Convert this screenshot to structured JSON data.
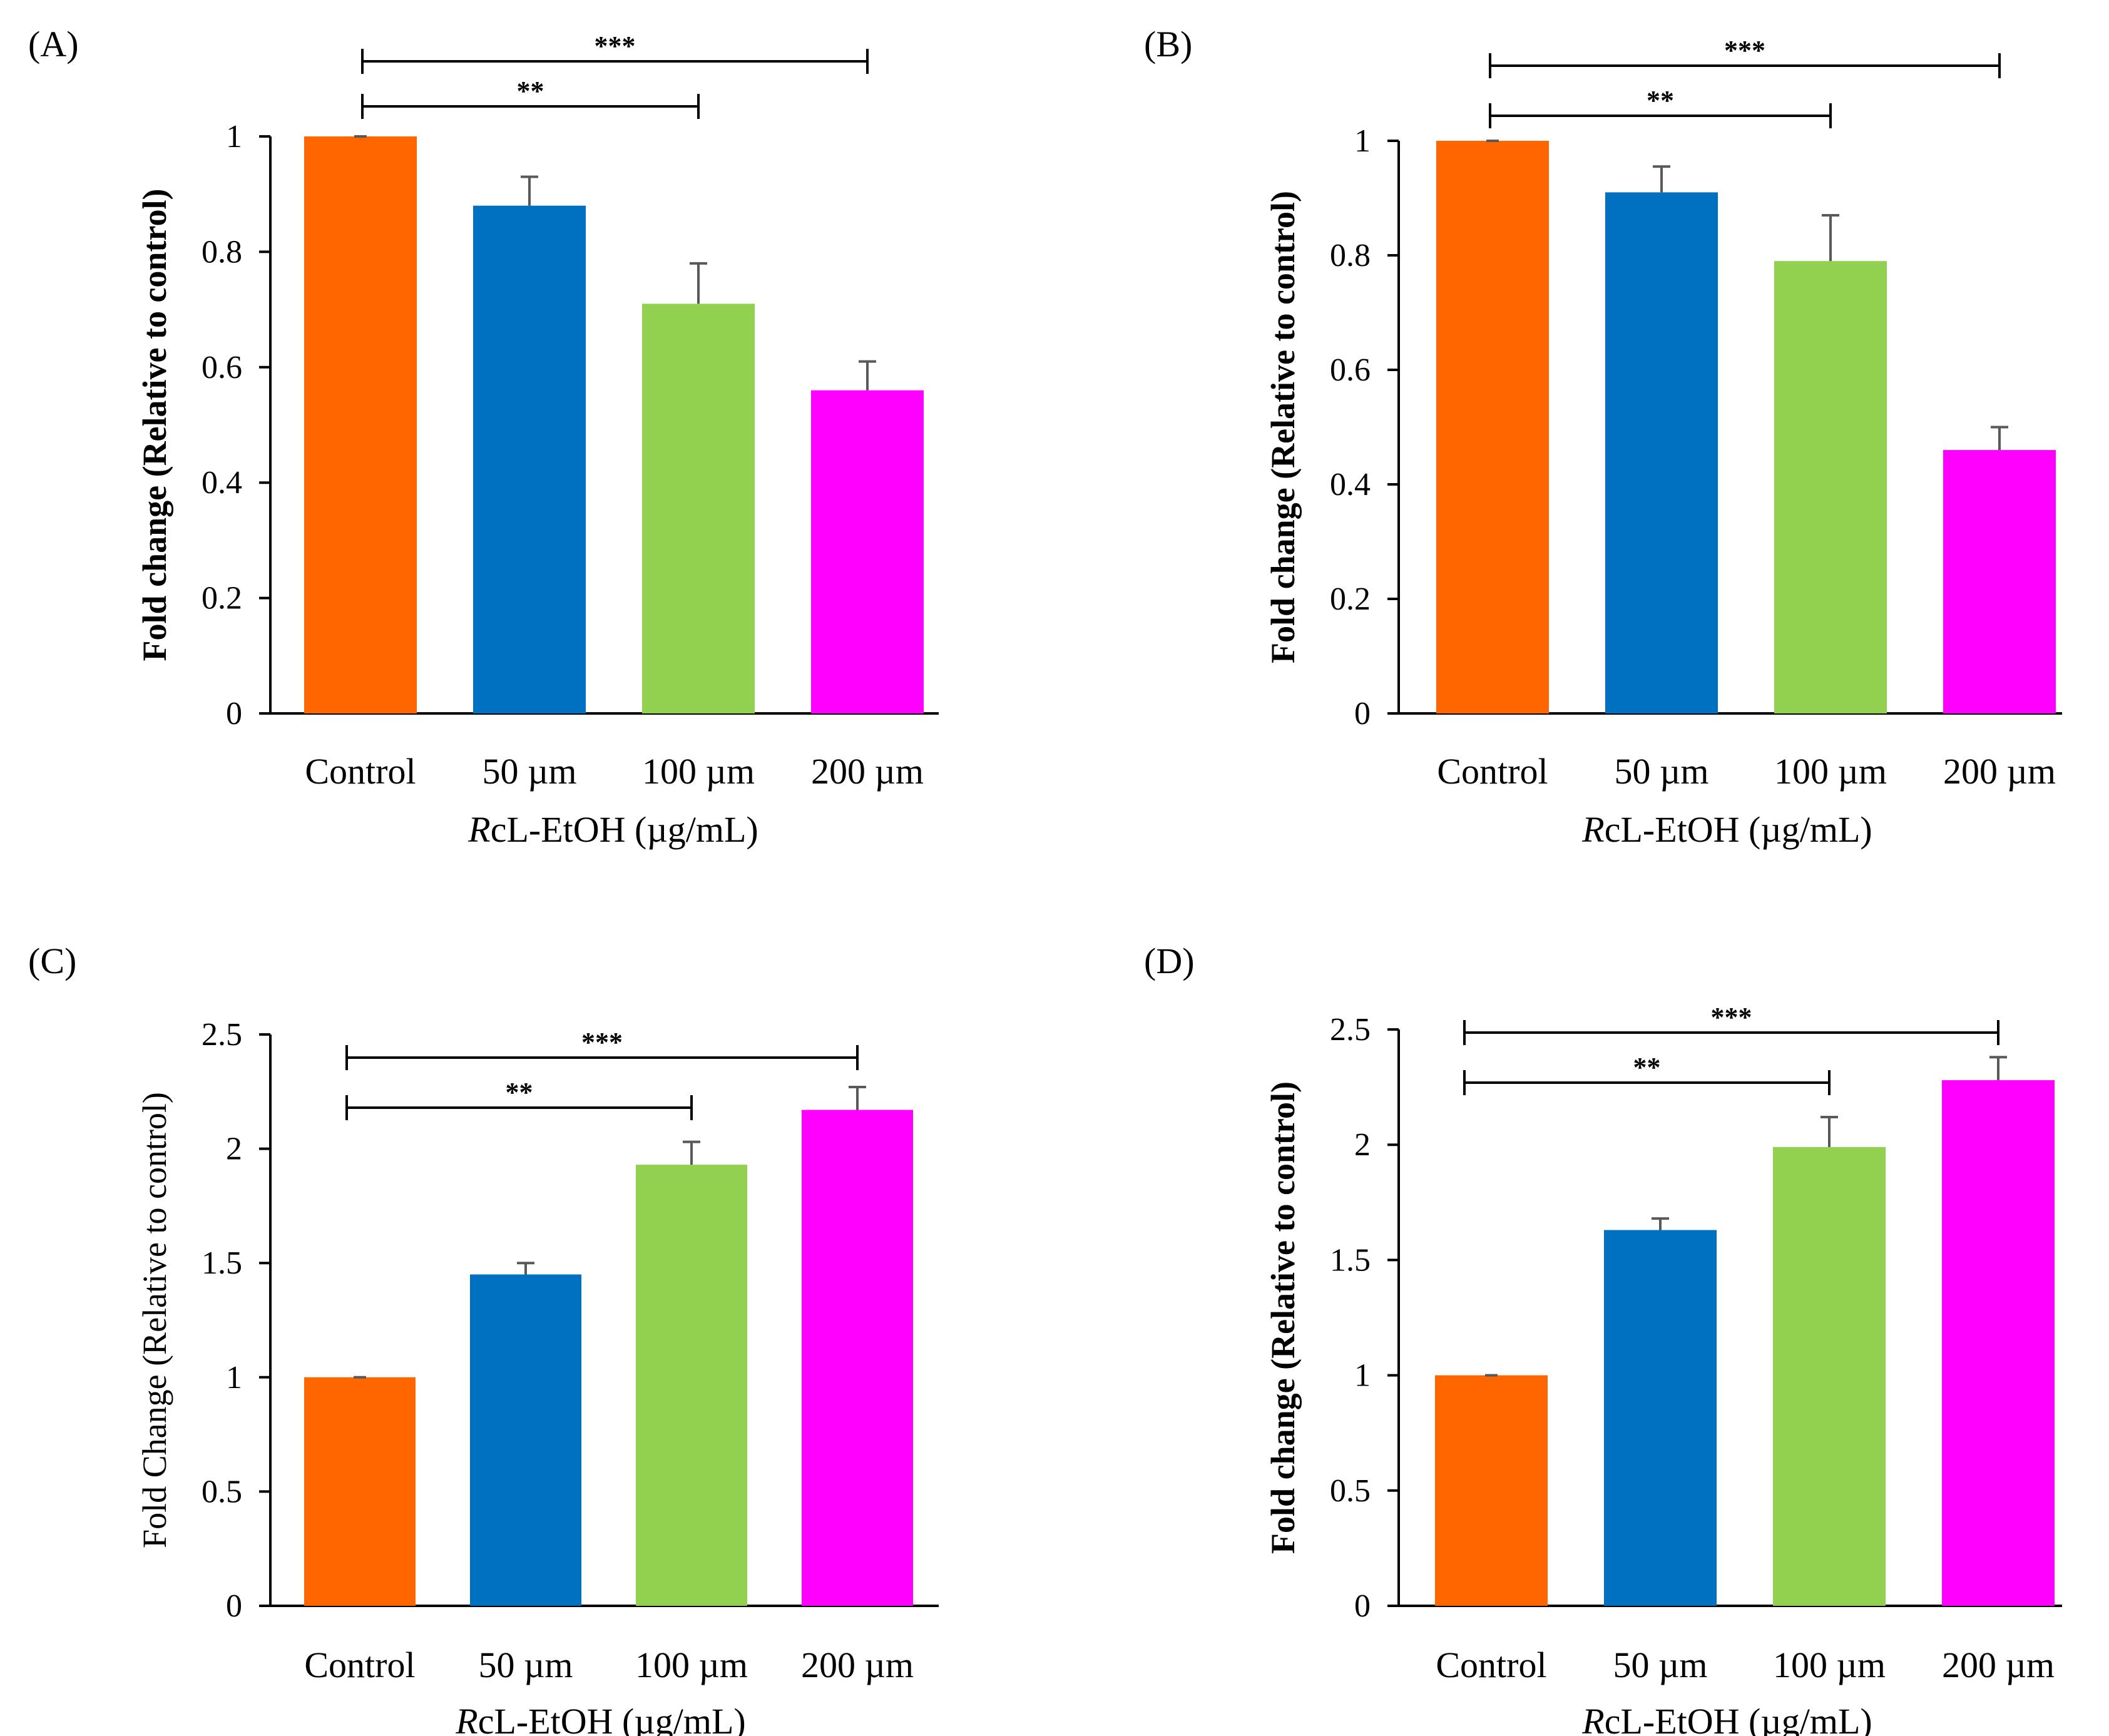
{
  "chart_data": [
    {
      "type": "bar",
      "panel_label": "(A)",
      "categories": [
        "Control",
        "50 µm",
        "100 µm",
        "200 µm"
      ],
      "series": [
        {
          "name": "Fold change",
          "values": [
            1.0,
            0.88,
            0.71,
            0.56
          ],
          "errors": [
            0.0,
            0.05,
            0.07,
            0.05
          ]
        }
      ],
      "colors": [
        "#FF6600",
        "#0070C0",
        "#92D050",
        "#FF00FF"
      ],
      "xlabel_italic": "R",
      "xlabel_rest": "cL-EtOH (µg/mL)",
      "ylabel": "Fold change (Relative to control)",
      "ylabel_bold": true,
      "ylim": [
        0,
        1
      ],
      "yticks": [
        "0",
        "0.2",
        "0.4",
        "0.6",
        "0.8",
        "1"
      ],
      "significance": [
        {
          "from": 0,
          "to": 3,
          "label": "***"
        },
        {
          "from": 0,
          "to": 2,
          "label": "**"
        }
      ]
    },
    {
      "type": "bar",
      "panel_label": "(B)",
      "categories": [
        "Control",
        "50 µm",
        "100 µm",
        "200 µm"
      ],
      "series": [
        {
          "name": "Fold change",
          "values": [
            1.0,
            0.91,
            0.79,
            0.46
          ],
          "errors": [
            0.0,
            0.045,
            0.08,
            0.04
          ]
        }
      ],
      "colors": [
        "#FF6600",
        "#0070C0",
        "#92D050",
        "#FF00FF"
      ],
      "xlabel_italic": "R",
      "xlabel_rest": "cL-EtOH (µg/mL)",
      "ylabel": "Fold change (Relative to control)",
      "ylabel_bold": true,
      "ylim": [
        0,
        1
      ],
      "yticks": [
        "0",
        "0.2",
        "0.4",
        "0.6",
        "0.8",
        "1"
      ],
      "significance": [
        {
          "from": 0,
          "to": 3,
          "label": "***"
        },
        {
          "from": 0,
          "to": 2,
          "label": "**"
        }
      ]
    },
    {
      "type": "bar",
      "panel_label": "(C)",
      "categories": [
        "Control",
        "50 µm",
        "100 µm",
        "200 µm"
      ],
      "series": [
        {
          "name": "Fold change",
          "values": [
            1.0,
            1.45,
            1.93,
            2.17
          ],
          "errors": [
            0.0,
            0.05,
            0.1,
            0.1
          ]
        }
      ],
      "colors": [
        "#FF6600",
        "#0070C0",
        "#92D050",
        "#FF00FF"
      ],
      "xlabel_italic": "R",
      "xlabel_rest": "cL-EtOH (µg/mL)",
      "ylabel": "Fold Change (Relative to control)",
      "ylabel_bold": false,
      "ylim": [
        0,
        2.5
      ],
      "yticks": [
        "0",
        "0.5",
        "1",
        "1.5",
        "2",
        "2.5"
      ],
      "significance": [
        {
          "from": 0,
          "to": 3,
          "label": "***"
        },
        {
          "from": 0,
          "to": 2,
          "label": "**"
        }
      ]
    },
    {
      "type": "bar",
      "panel_label": "(D)",
      "categories": [
        "Control",
        "50 µm",
        "100 µm",
        "200 µm"
      ],
      "series": [
        {
          "name": "Fold change",
          "values": [
            1.0,
            1.63,
            1.99,
            2.28
          ],
          "errors": [
            0.0,
            0.05,
            0.13,
            0.1
          ]
        }
      ],
      "colors": [
        "#FF6600",
        "#0070C0",
        "#92D050",
        "#FF00FF"
      ],
      "xlabel_italic": "R",
      "xlabel_rest": "cL-EtOH (µg/mL)",
      "ylabel": "Fold change (Relative to control)",
      "ylabel_bold": true,
      "ylim": [
        0,
        2.5
      ],
      "yticks": [
        "0",
        "0.5",
        "1",
        "1.5",
        "2",
        "2.5"
      ],
      "significance": [
        {
          "from": 0,
          "to": 3,
          "label": "***"
        },
        {
          "from": 0,
          "to": 2,
          "label": "**"
        }
      ]
    }
  ]
}
